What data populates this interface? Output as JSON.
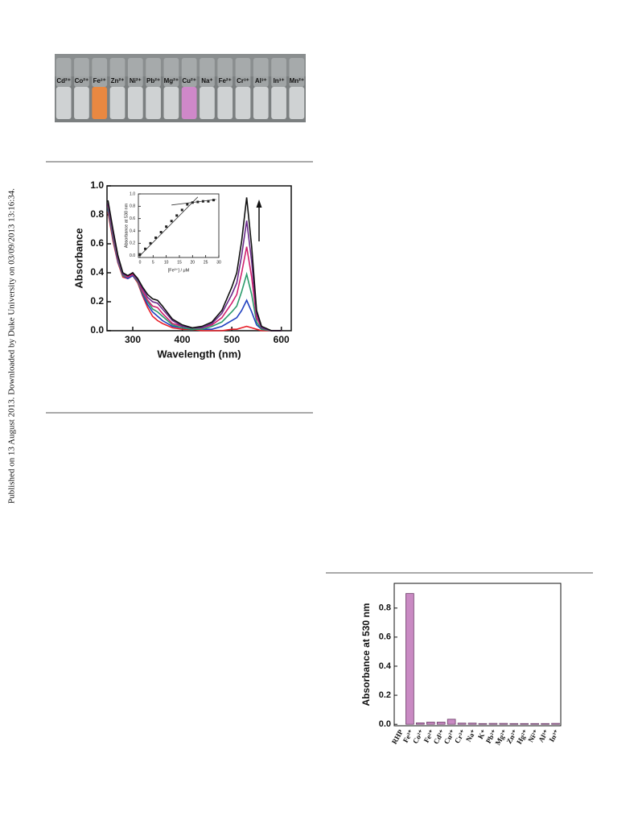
{
  "side_note": "Published on 13 August 2013. Downloaded by Duke University on 03/09/2013 13:16:34.",
  "photo": {
    "labels": [
      "Cd²⁺",
      "Co²⁺",
      "Fe³⁺",
      "Zn²⁺",
      "Ni²⁺",
      "Pb²⁺",
      "Mg²⁺",
      "Cu²⁺",
      "Na⁺",
      "Fe²⁺",
      "Cr³⁺",
      "Al³⁺",
      "In³⁺",
      "Mn²⁺"
    ],
    "tints": [
      "#d8dcdc",
      "#d8dcdc",
      "#f58a3a",
      "#d8dcdc",
      "#d8dcdc",
      "#d8dcdc",
      "#d8dcdc",
      "#d88ad0",
      "#d8dcdc",
      "#d8dcdc",
      "#d8dcdc",
      "#d8dcdc",
      "#d8dcdc",
      "#d8dcdc"
    ]
  },
  "chart_data": [
    {
      "type": "line",
      "xlabel": "Wavelength (nm)",
      "ylabel": "Absorbance",
      "x": [
        250,
        260,
        270,
        280,
        290,
        300,
        310,
        320,
        330,
        340,
        350,
        360,
        380,
        400,
        420,
        440,
        460,
        480,
        500,
        510,
        520,
        530,
        540,
        550,
        560,
        580,
        600
      ],
      "series": [
        {
          "color": "#e8202a",
          "values": [
            0.82,
            0.62,
            0.47,
            0.37,
            0.36,
            0.38,
            0.33,
            0.24,
            0.16,
            0.1,
            0.07,
            0.05,
            0.02,
            0.01,
            0.01,
            0.0,
            0.0,
            0.0,
            0.01,
            0.01,
            0.02,
            0.03,
            0.02,
            0.01,
            0.0,
            0.0,
            0.0
          ]
        },
        {
          "color": "#2040c0",
          "values": [
            0.84,
            0.64,
            0.48,
            0.38,
            0.36,
            0.38,
            0.34,
            0.25,
            0.18,
            0.13,
            0.1,
            0.07,
            0.03,
            0.02,
            0.01,
            0.01,
            0.01,
            0.03,
            0.07,
            0.09,
            0.14,
            0.21,
            0.13,
            0.04,
            0.01,
            0.0,
            0.0
          ]
        },
        {
          "color": "#2a9a6a",
          "values": [
            0.85,
            0.65,
            0.49,
            0.38,
            0.37,
            0.39,
            0.34,
            0.26,
            0.2,
            0.15,
            0.13,
            0.1,
            0.04,
            0.02,
            0.01,
            0.01,
            0.03,
            0.06,
            0.13,
            0.17,
            0.27,
            0.39,
            0.25,
            0.06,
            0.01,
            0.0,
            0.0
          ]
        },
        {
          "color": "#d0206e",
          "values": [
            0.87,
            0.67,
            0.5,
            0.39,
            0.37,
            0.39,
            0.35,
            0.27,
            0.21,
            0.17,
            0.16,
            0.12,
            0.05,
            0.03,
            0.02,
            0.02,
            0.04,
            0.09,
            0.19,
            0.25,
            0.4,
            0.58,
            0.37,
            0.09,
            0.02,
            0.0,
            0.0
          ]
        },
        {
          "color": "#6a2a8a",
          "values": [
            0.88,
            0.68,
            0.51,
            0.39,
            0.38,
            0.4,
            0.35,
            0.29,
            0.23,
            0.2,
            0.19,
            0.15,
            0.07,
            0.03,
            0.02,
            0.02,
            0.05,
            0.12,
            0.25,
            0.33,
            0.52,
            0.76,
            0.48,
            0.12,
            0.02,
            0.0,
            0.0
          ]
        },
        {
          "color": "#111111",
          "values": [
            0.9,
            0.7,
            0.52,
            0.4,
            0.38,
            0.4,
            0.36,
            0.3,
            0.25,
            0.22,
            0.21,
            0.17,
            0.08,
            0.04,
            0.02,
            0.03,
            0.06,
            0.14,
            0.3,
            0.4,
            0.62,
            0.92,
            0.58,
            0.14,
            0.03,
            0.0,
            0.0
          ]
        }
      ],
      "xlim": [
        248,
        620
      ],
      "xticks": [
        300,
        400,
        500,
        600
      ],
      "ylim": [
        0,
        1.0
      ],
      "yticks": [
        {
          "value": 0,
          "label": "0.0"
        },
        {
          "value": 0.2,
          "label": "0.2"
        },
        {
          "value": 0.4,
          "label": "0.4"
        },
        {
          "value": 0.6,
          "label": "0.6"
        },
        {
          "value": 0.8,
          "label": "0.8"
        },
        {
          "value": 1.0,
          "label": "1.0"
        }
      ]
    },
    {
      "type": "scatter",
      "xlabel": "[Fe³⁺] / μM",
      "ylabel": "Absorbance at 530 nm",
      "color": "#222222",
      "x": [
        0,
        2,
        4,
        6,
        8,
        10,
        12,
        14,
        16,
        18,
        20,
        22,
        24,
        26,
        28
      ],
      "values": [
        0.02,
        0.11,
        0.2,
        0.29,
        0.38,
        0.47,
        0.56,
        0.65,
        0.74,
        0.83,
        0.86,
        0.87,
        0.88,
        0.88,
        0.9
      ],
      "fit_lines": [
        {
          "x": [
            0,
            22
          ],
          "y": [
            0,
            0.95
          ]
        },
        {
          "x": [
            12,
            29
          ],
          "y": [
            0.82,
            0.91
          ]
        }
      ],
      "xlim": [
        -0.6,
        30
      ],
      "xticks": [
        0,
        5,
        10,
        15,
        20,
        25,
        30
      ],
      "ylim": [
        -0.03,
        1.0
      ],
      "yticks": [
        {
          "value": 0,
          "label": "0.0"
        },
        {
          "value": 0.2,
          "label": "0.2"
        },
        {
          "value": 0.4,
          "label": "0.4"
        },
        {
          "value": 0.6,
          "label": "0.6"
        },
        {
          "value": 0.8,
          "label": "0.8"
        },
        {
          "value": 1.0,
          "label": "1.0"
        }
      ]
    },
    {
      "type": "bar",
      "ylabel": "Absorbance at 530 nm",
      "color": "#c98ac3",
      "categories": [
        "RHP",
        "Fe³⁺",
        "Co²⁺",
        "Fe²⁺",
        "Cd²⁺",
        "Cu²⁺",
        "Cr³⁺",
        "Na⁺",
        "K⁺",
        "Pb²⁺",
        "Mg²⁺",
        "Zn²⁺",
        "Hg²⁺",
        "Ni²⁺",
        "Al³⁺",
        "In³⁺"
      ],
      "values": [
        0,
        0.9,
        0.01,
        0.015,
        0.015,
        0.035,
        0.008,
        0.008,
        0.005,
        0.006,
        0.006,
        0.005,
        0.005,
        0.005,
        0.005,
        0.006
      ],
      "ylim": [
        -0.01,
        0.97
      ],
      "yticks": [
        {
          "value": 0,
          "label": "0.0"
        },
        {
          "value": 0.2,
          "label": "0.2"
        },
        {
          "value": 0.4,
          "label": "0.4"
        },
        {
          "value": 0.6,
          "label": "0.6"
        },
        {
          "value": 0.8,
          "label": "0.8"
        }
      ]
    }
  ]
}
